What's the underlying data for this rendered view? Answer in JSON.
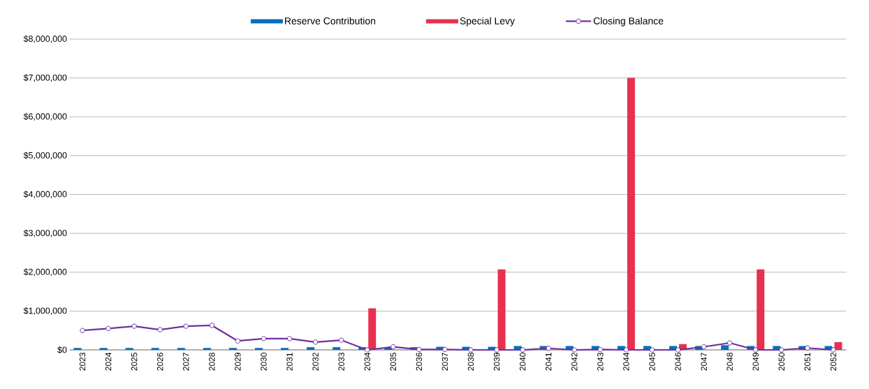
{
  "chart_data": {
    "type": "bar",
    "categories": [
      "2023",
      "2024",
      "2025",
      "2026",
      "2027",
      "2028",
      "2029",
      "2030",
      "2031",
      "2032",
      "2033",
      "2034",
      "2035",
      "2036",
      "2037",
      "2038",
      "2039",
      "2040",
      "2041",
      "2042",
      "2043",
      "2044",
      "2045",
      "2046",
      "2047",
      "2048",
      "2049",
      "2050",
      "2051",
      "2052"
    ],
    "series": [
      {
        "name": "Reserve Contribution",
        "color": "#0070c0",
        "values": [
          50000,
          50000,
          50000,
          50000,
          50000,
          50000,
          50000,
          50000,
          50000,
          70000,
          70000,
          70000,
          70000,
          70000,
          80000,
          80000,
          80000,
          100000,
          100000,
          100000,
          100000,
          100000,
          100000,
          100000,
          100000,
          120000,
          100000,
          100000,
          100000,
          100000
        ]
      },
      {
        "name": "Special Levy",
        "color": "#e8304f",
        "values": [
          null,
          null,
          null,
          null,
          null,
          null,
          null,
          null,
          null,
          null,
          null,
          1070000,
          null,
          null,
          null,
          null,
          2070000,
          null,
          null,
          null,
          null,
          7000000,
          null,
          150000,
          null,
          null,
          2070000,
          null,
          null,
          200000
        ]
      },
      {
        "name": "Closing Balance",
        "type": "line",
        "color": "#7030a0",
        "marker": "circle",
        "values": [
          500000,
          550000,
          610000,
          520000,
          610000,
          630000,
          230000,
          290000,
          290000,
          200000,
          250000,
          0,
          80000,
          10000,
          10000,
          0,
          0,
          0,
          40000,
          0,
          10000,
          0,
          0,
          0,
          80000,
          180000,
          0,
          0,
          50000,
          0
        ]
      }
    ],
    "ylim": [
      0,
      8000000
    ],
    "yticks": [
      {
        "value": 0,
        "label": "$0"
      },
      {
        "value": 1000000,
        "label": "$1,000,000"
      },
      {
        "value": 2000000,
        "label": "$2,000,000"
      },
      {
        "value": 3000000,
        "label": "$3,000,000"
      },
      {
        "value": 4000000,
        "label": "$4,000,000"
      },
      {
        "value": 5000000,
        "label": "$5,000,000"
      },
      {
        "value": 6000000,
        "label": "$6,000,000"
      },
      {
        "value": 7000000,
        "label": "$7,000,000"
      },
      {
        "value": 8000000,
        "label": "$8,000,000"
      }
    ],
    "grid": "y",
    "legend": "top"
  }
}
